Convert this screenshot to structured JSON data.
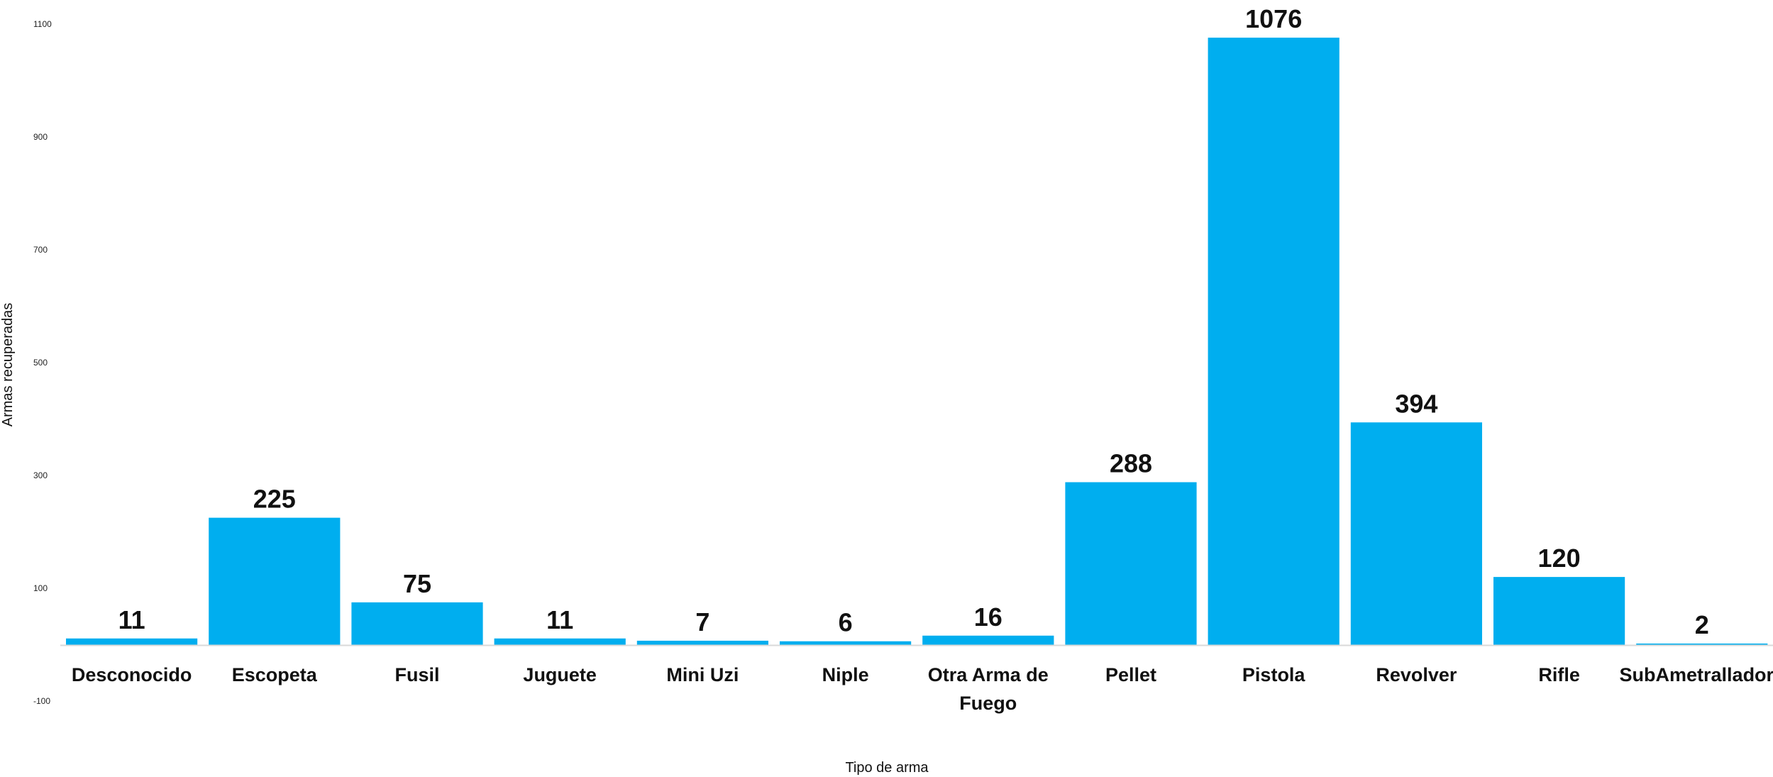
{
  "chart_data": {
    "type": "bar",
    "categories": [
      "Desconocido",
      "Escopeta",
      "Fusil",
      "Juguete",
      "Mini Uzi",
      "Niple",
      "Otra Arma de Fuego",
      "Pellet",
      "Pistola",
      "Revolver",
      "Rifle",
      "SubAmetralladora"
    ],
    "values": [
      11,
      225,
      75,
      11,
      7,
      6,
      16,
      288,
      1076,
      394,
      120,
      2
    ],
    "xlabel": "Tipo de arma",
    "ylabel": "Armas recuperadas",
    "ylim": [
      -100,
      1100
    ],
    "yticks": [
      "1100",
      "900",
      "700",
      "500",
      "300",
      "100",
      "-100"
    ],
    "grid": false,
    "bar_color": "#00AEEF",
    "baseline_color": "#d9d9d9"
  }
}
